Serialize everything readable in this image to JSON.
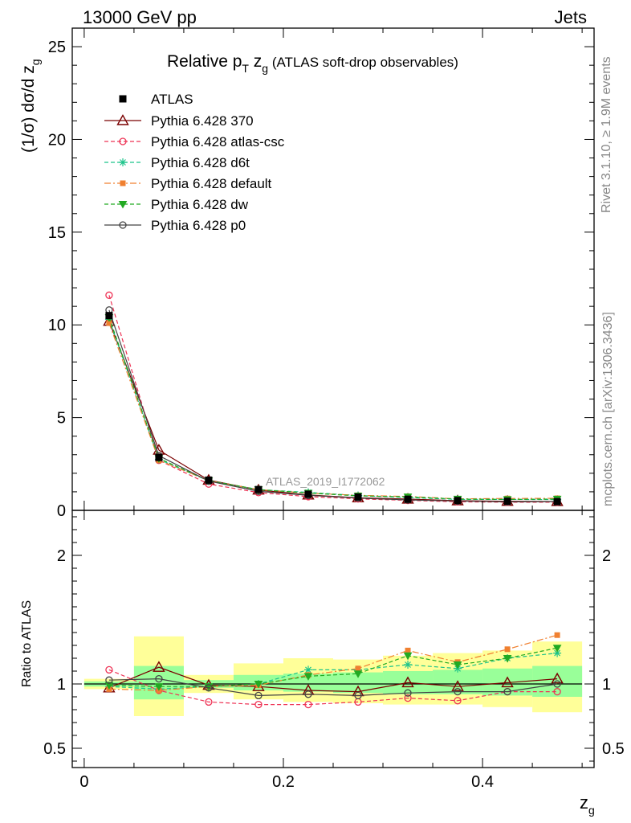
{
  "header": {
    "energy_label": "13000 GeV pp",
    "process_label": "Jets"
  },
  "side_labels": {
    "rivet": "Rivet 3.1.10, ≥ 1.9M events",
    "mcplots": "mcplots.cern.ch [arXiv:1306.3436]"
  },
  "chart_data": [
    {
      "type": "line",
      "panel": "main",
      "title_parts": {
        "pre": "Relative p",
        "sub1": "T",
        "mid": " z",
        "sub2": "g",
        "post": " (ATLAS soft-drop observables)"
      },
      "ylabel_parts": {
        "main": "(1/σ) dσ/d z",
        "sub": "g"
      },
      "analysis_tag": "ATLAS_2019_I1772062",
      "xlim": [
        -0.012,
        0.512
      ],
      "ylim": [
        0,
        26
      ],
      "yticks": [
        0,
        5,
        10,
        15,
        20,
        25
      ],
      "ytick_labels": [
        "0",
        "5",
        "10",
        "15",
        "20",
        "25"
      ],
      "x": [
        0.025,
        0.075,
        0.125,
        0.175,
        0.225,
        0.275,
        0.325,
        0.375,
        0.425,
        0.475
      ],
      "reference": {
        "name": "ATLAS",
        "values": [
          10.5,
          2.85,
          1.63,
          1.12,
          0.87,
          0.72,
          0.6,
          0.53,
          0.49,
          0.47
        ]
      },
      "series": [
        {
          "name": "Pythia 6.428 370",
          "color": "#7a0000",
          "marker": "triangle-open",
          "dash": "solid",
          "values": [
            10.2,
            3.25,
            1.63,
            1.1,
            0.83,
            0.68,
            0.61,
            0.52,
            0.49,
            0.48
          ]
        },
        {
          "name": "Pythia 6.428 atlas-csc",
          "color": "#ee3355",
          "marker": "circle-open",
          "dash": "dashed",
          "values": [
            11.6,
            2.7,
            1.42,
            0.96,
            0.74,
            0.62,
            0.54,
            0.46,
            0.44,
            0.44
          ]
        },
        {
          "name": "Pythia 6.428 d6t",
          "color": "#1bc48a",
          "marker": "star",
          "dash": "dashed",
          "values": [
            10.3,
            2.75,
            1.59,
            1.12,
            0.97,
            0.8,
            0.69,
            0.59,
            0.59,
            0.58
          ]
        },
        {
          "name": "Pythia 6.428 default",
          "color": "#f08030",
          "marker": "square",
          "dash": "dashdot",
          "values": [
            10.1,
            2.7,
            1.6,
            1.12,
            0.93,
            0.81,
            0.75,
            0.62,
            0.64,
            0.65
          ]
        },
        {
          "name": "Pythia 6.428 dw",
          "color": "#22aa22",
          "marker": "triangle-down",
          "dash": "dashed",
          "values": [
            10.4,
            2.8,
            1.6,
            1.12,
            0.93,
            0.78,
            0.73,
            0.61,
            0.59,
            0.61
          ]
        },
        {
          "name": "Pythia 6.428 p0",
          "color": "#444444",
          "marker": "circle-open",
          "dash": "solid",
          "values": [
            10.8,
            2.95,
            1.58,
            1.03,
            0.81,
            0.66,
            0.56,
            0.5,
            0.46,
            0.47
          ]
        }
      ]
    },
    {
      "type": "line",
      "panel": "ratio",
      "ylabel": "Ratio to ATLAS",
      "xlabel_parts": {
        "main": "z",
        "sub": "g"
      },
      "xlim": [
        -0.012,
        0.512
      ],
      "ylim": [
        0.35,
        2.35
      ],
      "yticks": [
        0.5,
        1,
        2
      ],
      "ytick_labels": [
        "0.5",
        "1",
        "2"
      ],
      "xticks": [
        0,
        0.2,
        0.4
      ],
      "xtick_labels": [
        "0",
        "0.2",
        "0.4"
      ],
      "x": [
        0.025,
        0.075,
        0.125,
        0.175,
        0.225,
        0.275,
        0.325,
        0.375,
        0.425,
        0.475
      ],
      "bin_edges": [
        0.0,
        0.05,
        0.1,
        0.15,
        0.2,
        0.25,
        0.3,
        0.35,
        0.4,
        0.45,
        0.5
      ],
      "band_yellow": [
        [
          0.96,
          1.04
        ],
        [
          0.75,
          1.37
        ],
        [
          0.93,
          1.07
        ],
        [
          0.88,
          1.16
        ],
        [
          0.86,
          1.2
        ],
        [
          0.85,
          1.19
        ],
        [
          0.84,
          1.22
        ],
        [
          0.84,
          1.24
        ],
        [
          0.82,
          1.26
        ],
        [
          0.78,
          1.33
        ]
      ],
      "band_green": [
        [
          0.98,
          1.02
        ],
        [
          0.88,
          1.14
        ],
        [
          0.97,
          1.03
        ],
        [
          0.95,
          1.07
        ],
        [
          0.94,
          1.08
        ],
        [
          0.93,
          1.09
        ],
        [
          0.92,
          1.1
        ],
        [
          0.92,
          1.11
        ],
        [
          0.91,
          1.12
        ],
        [
          0.9,
          1.14
        ]
      ],
      "series": [
        {
          "name": "Pythia 6.428 370",
          "color": "#7a0000",
          "marker": "triangle-open",
          "dash": "solid",
          "values": [
            0.97,
            1.13,
            0.99,
            0.98,
            0.95,
            0.94,
            1.01,
            0.98,
            1.01,
            1.04
          ]
        },
        {
          "name": "Pythia 6.428 atlas-csc",
          "color": "#ee3355",
          "marker": "circle-open",
          "dash": "dashed",
          "values": [
            1.11,
            0.95,
            0.86,
            0.84,
            0.84,
            0.86,
            0.89,
            0.87,
            0.94,
            0.94
          ]
        },
        {
          "name": "Pythia 6.428 d6t",
          "color": "#1bc48a",
          "marker": "star",
          "dash": "dashed",
          "values": [
            0.98,
            0.96,
            0.98,
            1.0,
            1.11,
            1.11,
            1.15,
            1.12,
            1.2,
            1.24
          ]
        },
        {
          "name": "Pythia 6.428 default",
          "color": "#f08030",
          "marker": "square",
          "dash": "dashdot",
          "values": [
            0.96,
            0.95,
            0.98,
            0.99,
            1.07,
            1.12,
            1.26,
            1.17,
            1.27,
            1.38
          ]
        },
        {
          "name": "Pythia 6.428 dw",
          "color": "#22aa22",
          "marker": "triangle-down",
          "dash": "dashed",
          "values": [
            0.99,
            0.98,
            0.98,
            1.0,
            1.06,
            1.08,
            1.22,
            1.15,
            1.2,
            1.28
          ]
        },
        {
          "name": "Pythia 6.428 p0",
          "color": "#444444",
          "marker": "circle-open",
          "dash": "solid",
          "values": [
            1.03,
            1.04,
            0.97,
            0.91,
            0.92,
            0.91,
            0.93,
            0.94,
            0.94,
            1.0
          ]
        }
      ]
    }
  ]
}
